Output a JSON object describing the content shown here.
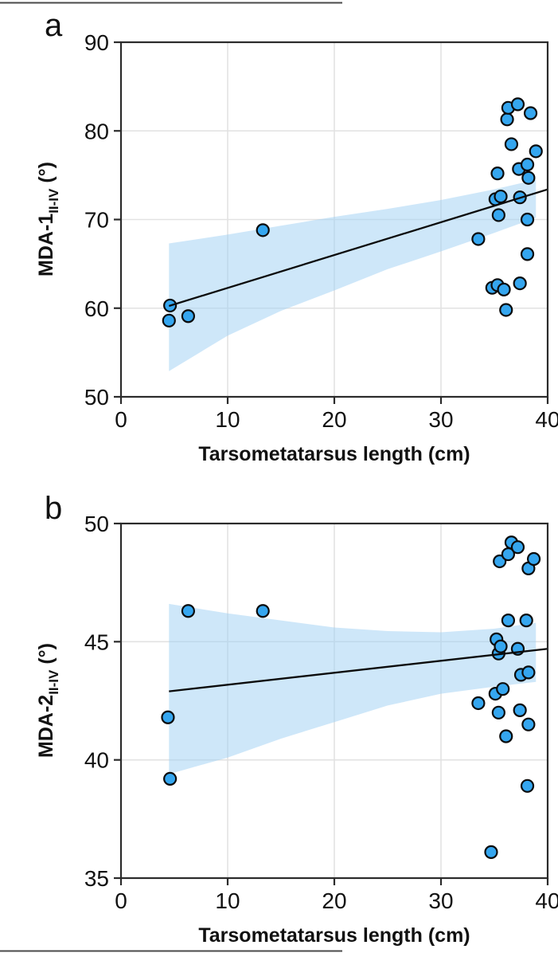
{
  "figure": {
    "panel_letters": [
      "a",
      "b"
    ]
  },
  "colors": {
    "marker_fill": "#35A6EF",
    "marker_stroke": "#0b0b0b",
    "band_fill": "#9DCFF3",
    "band_opacity": 0.5,
    "regression_line": "#0b0b0b",
    "grid": "#E2E2E2",
    "axis": "#2b2b2b",
    "text": "#111111",
    "rule": "#4a4a4a"
  },
  "chart_data": [
    {
      "type": "scatter",
      "panel_label": "a",
      "xlabel": "Tarsometatarsus length (cm)",
      "ylabel_main": "MDA-1",
      "ylabel_sub": "II-IV",
      "ylabel_unit": " (°)",
      "xlim": [
        0,
        40
      ],
      "ylim": [
        50,
        90
      ],
      "xticks": [
        0,
        10,
        20,
        30,
        40
      ],
      "yticks": [
        50,
        60,
        70,
        80,
        90
      ],
      "grid": true,
      "legend": "none",
      "points": [
        [
          4.6,
          60.3
        ],
        [
          4.5,
          58.6
        ],
        [
          6.3,
          59.1
        ],
        [
          13.3,
          68.8
        ],
        [
          33.5,
          67.8
        ],
        [
          34.8,
          62.3
        ],
        [
          35.1,
          72.3
        ],
        [
          35.3,
          62.6
        ],
        [
          35.3,
          75.2
        ],
        [
          35.4,
          70.5
        ],
        [
          35.6,
          72.6
        ],
        [
          35.9,
          62.1
        ],
        [
          36.1,
          59.8
        ],
        [
          36.2,
          81.3
        ],
        [
          36.3,
          82.6
        ],
        [
          36.6,
          78.5
        ],
        [
          37.2,
          83.0
        ],
        [
          37.3,
          75.7
        ],
        [
          37.4,
          72.5
        ],
        [
          37.4,
          62.8
        ],
        [
          38.1,
          76.2
        ],
        [
          38.1,
          70.0
        ],
        [
          38.1,
          66.1
        ],
        [
          38.2,
          74.7
        ],
        [
          38.4,
          82.0
        ],
        [
          38.9,
          77.7
        ]
      ],
      "regression_line": {
        "x": [
          4.5,
          40
        ],
        "y": [
          60.25,
          73.4
        ]
      },
      "confidence_band": {
        "x": [
          4.5,
          10,
          15,
          20,
          25,
          30,
          35,
          38.9
        ],
        "upper": [
          67.3,
          68.3,
          69.3,
          70.3,
          71.2,
          72.2,
          73.4,
          74.5
        ],
        "lower": [
          52.9,
          56.9,
          59.7,
          62.0,
          64.4,
          66.4,
          68.5,
          70.2
        ]
      }
    },
    {
      "type": "scatter",
      "panel_label": "b",
      "xlabel": "Tarsometatarsus length (cm)",
      "ylabel_main": "MDA-2",
      "ylabel_sub": "II-IV",
      "ylabel_unit": " (°)",
      "xlim": [
        0,
        40
      ],
      "ylim": [
        35,
        50
      ],
      "xticks": [
        0,
        10,
        20,
        30,
        40
      ],
      "yticks": [
        35,
        40,
        45,
        50
      ],
      "grid": true,
      "legend": "none",
      "points": [
        [
          4.4,
          41.8
        ],
        [
          4.6,
          39.2
        ],
        [
          6.3,
          46.3
        ],
        [
          13.3,
          46.3
        ],
        [
          33.5,
          42.4
        ],
        [
          34.7,
          36.1
        ],
        [
          35.1,
          42.8
        ],
        [
          35.2,
          45.1
        ],
        [
          35.4,
          44.5
        ],
        [
          35.4,
          42.0
        ],
        [
          35.5,
          48.4
        ],
        [
          35.6,
          44.8
        ],
        [
          35.8,
          43.0
        ],
        [
          36.1,
          41.0
        ],
        [
          36.3,
          48.7
        ],
        [
          36.3,
          45.9
        ],
        [
          36.6,
          49.2
        ],
        [
          37.2,
          49.0
        ],
        [
          37.2,
          44.7
        ],
        [
          37.4,
          42.1
        ],
        [
          37.5,
          43.6
        ],
        [
          38.0,
          45.9
        ],
        [
          38.1,
          38.9
        ],
        [
          38.2,
          48.1
        ],
        [
          38.2,
          43.7
        ],
        [
          38.2,
          41.5
        ],
        [
          38.7,
          48.5
        ]
      ],
      "regression_line": {
        "x": [
          4.5,
          40
        ],
        "y": [
          42.9,
          44.7
        ]
      },
      "confidence_band": {
        "x": [
          4.5,
          10,
          15,
          20,
          25,
          30,
          35,
          38.9
        ],
        "upper": [
          46.6,
          46.2,
          45.9,
          45.6,
          45.45,
          45.4,
          45.55,
          45.8
        ],
        "lower": [
          39.4,
          40.1,
          40.9,
          41.6,
          42.3,
          42.8,
          43.1,
          43.3
        ]
      }
    }
  ]
}
